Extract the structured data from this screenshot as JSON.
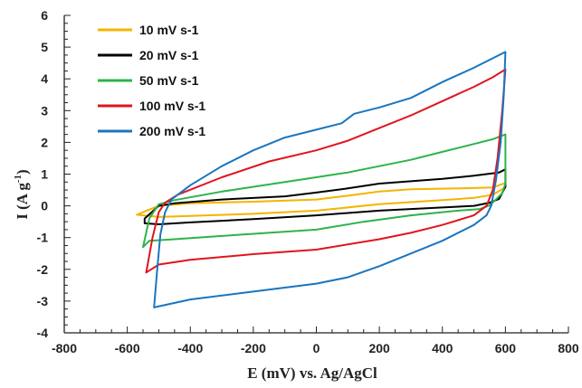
{
  "chart_data": {
    "type": "line",
    "xlabel": "E (mV) vs.  Ag/AgCl",
    "ylabel_main": "I (A g",
    "ylabel_sup": "-1",
    "ylabel_close": ")",
    "xlim": [
      -800,
      800
    ],
    "ylim": [
      -4,
      6
    ],
    "x_ticks": [
      -800,
      -600,
      -400,
      -200,
      0,
      200,
      400,
      600,
      800
    ],
    "y_ticks": [
      -4,
      -3,
      -2,
      -1,
      0,
      1,
      2,
      3,
      4,
      5,
      6
    ],
    "grid": false,
    "legend_position": "top-left",
    "series": [
      {
        "name": "10 mV s-1",
        "color": "#f5b400",
        "upper": [
          [
            -570,
            -0.28
          ],
          [
            -500,
            0.0
          ],
          [
            -400,
            0.08
          ],
          [
            -200,
            0.13
          ],
          [
            0,
            0.2
          ],
          [
            100,
            0.32
          ],
          [
            200,
            0.45
          ],
          [
            300,
            0.52
          ],
          [
            400,
            0.54
          ],
          [
            500,
            0.56
          ],
          [
            560,
            0.58
          ],
          [
            600,
            0.72
          ]
        ],
        "lower": [
          [
            600,
            0.58
          ],
          [
            560,
            0.35
          ],
          [
            500,
            0.25
          ],
          [
            400,
            0.18
          ],
          [
            200,
            0.05
          ],
          [
            0,
            -0.15
          ],
          [
            -200,
            -0.25
          ],
          [
            -400,
            -0.32
          ],
          [
            -500,
            -0.35
          ],
          [
            -570,
            -0.28
          ]
        ]
      },
      {
        "name": "20 mV s-1",
        "color": "#000000",
        "upper": [
          [
            -545,
            -0.4
          ],
          [
            -500,
            0.0
          ],
          [
            -450,
            0.08
          ],
          [
            -300,
            0.2
          ],
          [
            -100,
            0.3
          ],
          [
            0,
            0.42
          ],
          [
            100,
            0.55
          ],
          [
            200,
            0.7
          ],
          [
            400,
            0.85
          ],
          [
            500,
            0.95
          ],
          [
            580,
            1.05
          ],
          [
            600,
            1.15
          ]
        ],
        "lower": [
          [
            600,
            0.6
          ],
          [
            580,
            0.22
          ],
          [
            550,
            0.1
          ],
          [
            500,
            0.0
          ],
          [
            400,
            -0.05
          ],
          [
            200,
            -0.15
          ],
          [
            0,
            -0.3
          ],
          [
            -200,
            -0.42
          ],
          [
            -400,
            -0.52
          ],
          [
            -500,
            -0.58
          ],
          [
            -545,
            -0.55
          ]
        ]
      },
      {
        "name": "50 mV s-1",
        "color": "#2db34a",
        "upper": [
          [
            -550,
            -1.3
          ],
          [
            -530,
            -0.4
          ],
          [
            -500,
            0.05
          ],
          [
            -450,
            0.18
          ],
          [
            -300,
            0.45
          ],
          [
            -100,
            0.75
          ],
          [
            0,
            0.9
          ],
          [
            100,
            1.05
          ],
          [
            200,
            1.25
          ],
          [
            300,
            1.45
          ],
          [
            400,
            1.7
          ],
          [
            500,
            1.95
          ],
          [
            560,
            2.1
          ],
          [
            600,
            2.25
          ]
        ],
        "lower": [
          [
            600,
            0.7
          ],
          [
            590,
            0.4
          ],
          [
            570,
            0.2
          ],
          [
            550,
            0.02
          ],
          [
            520,
            -0.1
          ],
          [
            450,
            -0.15
          ],
          [
            300,
            -0.3
          ],
          [
            150,
            -0.5
          ],
          [
            0,
            -0.75
          ],
          [
            -150,
            -0.85
          ],
          [
            -300,
            -0.95
          ],
          [
            -450,
            -1.05
          ],
          [
            -530,
            -1.1
          ],
          [
            -550,
            -1.3
          ]
        ]
      },
      {
        "name": "100 mV s-1",
        "color": "#e0141e",
        "upper": [
          [
            -540,
            -2.1
          ],
          [
            -520,
            -1.0
          ],
          [
            -500,
            -0.2
          ],
          [
            -480,
            0.1
          ],
          [
            -440,
            0.35
          ],
          [
            -300,
            0.9
          ],
          [
            -150,
            1.4
          ],
          [
            0,
            1.75
          ],
          [
            100,
            2.05
          ],
          [
            200,
            2.45
          ],
          [
            300,
            2.85
          ],
          [
            400,
            3.3
          ],
          [
            500,
            3.75
          ],
          [
            560,
            4.05
          ],
          [
            600,
            4.3
          ]
        ],
        "lower": [
          [
            600,
            4.3
          ],
          [
            590,
            3.0
          ],
          [
            575,
            1.5
          ],
          [
            560,
            0.5
          ],
          [
            540,
            0.0
          ],
          [
            500,
            -0.3
          ],
          [
            400,
            -0.6
          ],
          [
            300,
            -0.85
          ],
          [
            200,
            -1.05
          ],
          [
            0,
            -1.38
          ],
          [
            -200,
            -1.52
          ],
          [
            -400,
            -1.7
          ],
          [
            -500,
            -1.85
          ],
          [
            -540,
            -2.1
          ]
        ]
      },
      {
        "name": "200 mV s-1",
        "color": "#1a75bf",
        "upper": [
          [
            -515,
            -3.2
          ],
          [
            -505,
            -2.0
          ],
          [
            -495,
            -0.9
          ],
          [
            -480,
            -0.2
          ],
          [
            -460,
            0.2
          ],
          [
            -400,
            0.65
          ],
          [
            -300,
            1.25
          ],
          [
            -200,
            1.75
          ],
          [
            -100,
            2.15
          ],
          [
            0,
            2.4
          ],
          [
            80,
            2.6
          ],
          [
            120,
            2.9
          ],
          [
            200,
            3.1
          ],
          [
            300,
            3.4
          ],
          [
            400,
            3.9
          ],
          [
            500,
            4.35
          ],
          [
            560,
            4.65
          ],
          [
            600,
            4.85
          ]
        ],
        "lower": [
          [
            600,
            4.85
          ],
          [
            595,
            3.5
          ],
          [
            585,
            2.0
          ],
          [
            570,
            0.8
          ],
          [
            555,
            0.0
          ],
          [
            540,
            -0.3
          ],
          [
            500,
            -0.6
          ],
          [
            400,
            -1.1
          ],
          [
            300,
            -1.5
          ],
          [
            200,
            -1.9
          ],
          [
            100,
            -2.25
          ],
          [
            0,
            -2.45
          ],
          [
            -200,
            -2.7
          ],
          [
            -400,
            -2.95
          ],
          [
            -515,
            -3.2
          ]
        ]
      }
    ]
  }
}
